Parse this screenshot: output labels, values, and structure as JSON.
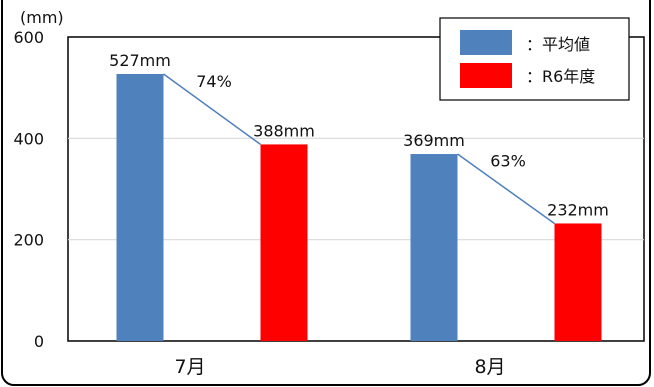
{
  "chart_data": {
    "type": "bar",
    "categories": [
      "7月",
      "8月"
    ],
    "series": [
      {
        "name": "：平均値",
        "values": [
          527,
          369
        ],
        "labels": [
          "527mm",
          "369mm"
        ],
        "color": "#4f81bd"
      },
      {
        "name": "：R6年度",
        "values": [
          388,
          232
        ],
        "labels": [
          "388mm",
          "232mm"
        ],
        "color": "#ff0000"
      }
    ],
    "ratios": [
      "74%",
      "63%"
    ],
    "ylabel": "(mm)",
    "ylim": [
      0,
      600
    ],
    "yticks": [
      0,
      200,
      400,
      600
    ],
    "grid": true,
    "legend": "top-right",
    "ratio_line_color": "#4f81bd"
  }
}
